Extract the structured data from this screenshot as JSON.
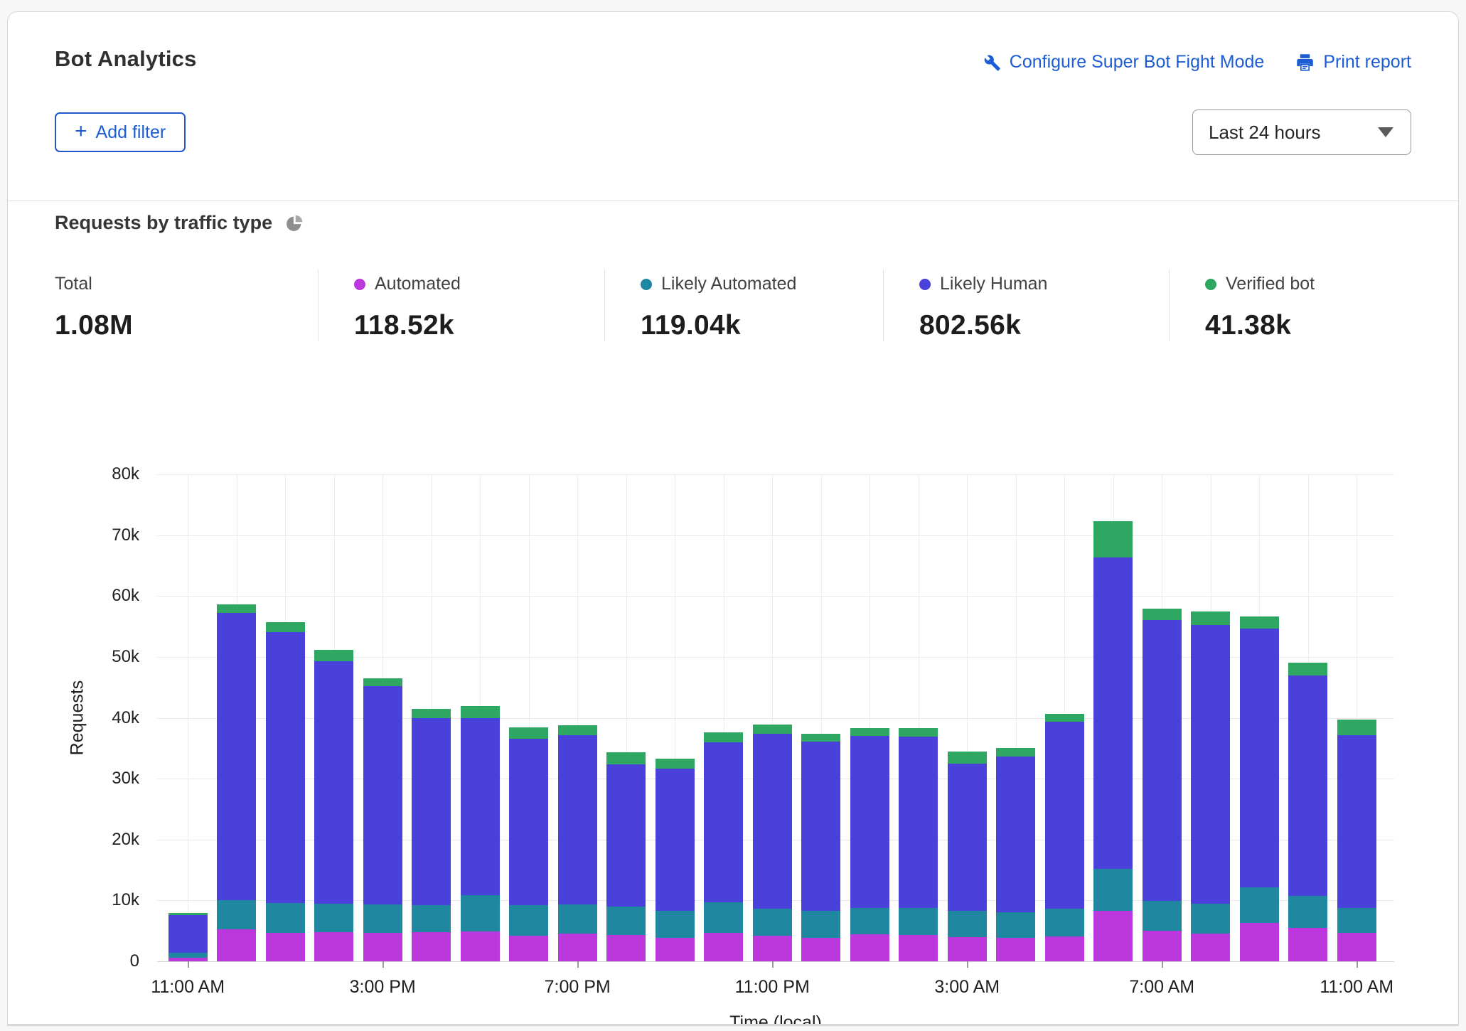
{
  "header": {
    "title": "Bot Analytics",
    "configure_link": "Configure Super Bot Fight Mode",
    "print_link": "Print report",
    "add_filter_label": "Add filter",
    "plus_glyph": "+",
    "time_range_value": "Last 24 hours"
  },
  "section": {
    "title": "Requests by traffic type"
  },
  "stats": [
    {
      "label": "Total",
      "value": "1.08M",
      "color": null
    },
    {
      "label": "Automated",
      "value": "118.52k",
      "color": "#bb38dc"
    },
    {
      "label": "Likely Automated",
      "value": "119.04k",
      "color": "#1f87a0"
    },
    {
      "label": "Likely Human",
      "value": "802.56k",
      "color": "#4a40da"
    },
    {
      "label": "Verified bot",
      "value": "41.38k",
      "color": "#2ea763"
    }
  ],
  "colors": {
    "link_blue": "#1d5dd3",
    "automated": "#bb38dc",
    "likely_automated": "#1f87a0",
    "likely_human": "#4a40da",
    "verified_bot": "#2ea763"
  },
  "chart_data": {
    "type": "bar",
    "stacked": true,
    "title": "Requests by traffic type",
    "xlabel": "Time (local)",
    "ylabel": "Requests",
    "ylim": [
      0,
      80000
    ],
    "ytick_step": 10000,
    "ytick_labels": [
      "0",
      "10k",
      "20k",
      "30k",
      "40k",
      "50k",
      "60k",
      "70k",
      "80k"
    ],
    "grid": true,
    "x_tick_every": 4,
    "x_tick_labels": [
      "11:00 AM",
      "3:00 PM",
      "7:00 PM",
      "11:00 PM",
      "3:00 AM",
      "7:00 AM",
      "11:00 AM"
    ],
    "categories": [
      "11:00 AM",
      "12:00 PM",
      "1:00 PM",
      "2:00 PM",
      "3:00 PM",
      "4:00 PM",
      "5:00 PM",
      "6:00 PM",
      "7:00 PM",
      "8:00 PM",
      "9:00 PM",
      "10:00 PM",
      "11:00 PM",
      "12:00 AM",
      "1:00 AM",
      "2:00 AM",
      "3:00 AM",
      "4:00 AM",
      "5:00 AM",
      "6:00 AM",
      "7:00 AM",
      "8:00 AM",
      "9:00 AM",
      "10:00 AM",
      "11:00 AM"
    ],
    "series": [
      {
        "name": "Automated",
        "color": "#bb38dc",
        "values": [
          600,
          5300,
          4700,
          4800,
          4700,
          4800,
          4900,
          4200,
          4500,
          4300,
          3900,
          4700,
          4200,
          3800,
          4400,
          4300,
          4000,
          3900,
          4100,
          8300,
          5000,
          4500,
          6300,
          5500,
          4700
        ]
      },
      {
        "name": "Likely Automated",
        "color": "#1f87a0",
        "values": [
          800,
          4700,
          4900,
          4700,
          4600,
          4400,
          6000,
          5000,
          4900,
          4700,
          4400,
          5000,
          4400,
          4500,
          4400,
          4500,
          4300,
          4200,
          4500,
          6900,
          4900,
          5000,
          5900,
          5300,
          4100
        ]
      },
      {
        "name": "Likely Human",
        "color": "#4a40da",
        "values": [
          6200,
          47200,
          44500,
          39800,
          35900,
          30700,
          29000,
          27300,
          27700,
          23400,
          23300,
          26300,
          28800,
          27800,
          28200,
          28100,
          24200,
          25500,
          30800,
          51100,
          46200,
          45800,
          42500,
          36200,
          28400
        ]
      },
      {
        "name": "Verified bot",
        "color": "#2ea763",
        "values": [
          400,
          1400,
          1600,
          1900,
          1300,
          1600,
          2000,
          1900,
          1700,
          1900,
          1700,
          1600,
          1500,
          1300,
          1300,
          1400,
          1900,
          1400,
          1300,
          6000,
          1800,
          2200,
          1900,
          2100,
          2500
        ]
      }
    ]
  }
}
